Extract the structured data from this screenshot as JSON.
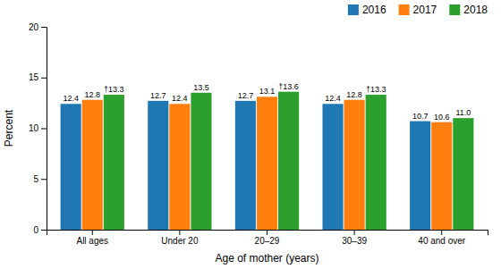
{
  "chart_data": {
    "type": "bar",
    "categories": [
      "All ages",
      "Under 20",
      "20–29",
      "30–39",
      "40 and over"
    ],
    "series": [
      {
        "name": "2016",
        "values": [
          12.4,
          12.7,
          12.7,
          12.4,
          10.7
        ]
      },
      {
        "name": "2017",
        "values": [
          12.8,
          12.4,
          13.1,
          12.8,
          10.6
        ]
      },
      {
        "name": "2018",
        "values": [
          13.3,
          13.5,
          13.6,
          13.3,
          11.0
        ],
        "value_labels": [
          "†13.3",
          "13.5",
          "†13.6",
          "†13.3",
          "11.0"
        ]
      }
    ],
    "xlabel": "Age of mother (years)",
    "ylabel": "Percent",
    "ylim": [
      0,
      20
    ],
    "yticks": [
      0,
      5,
      10,
      15,
      20
    ],
    "grid": false,
    "legend": "upper right",
    "data_labels": true
  }
}
